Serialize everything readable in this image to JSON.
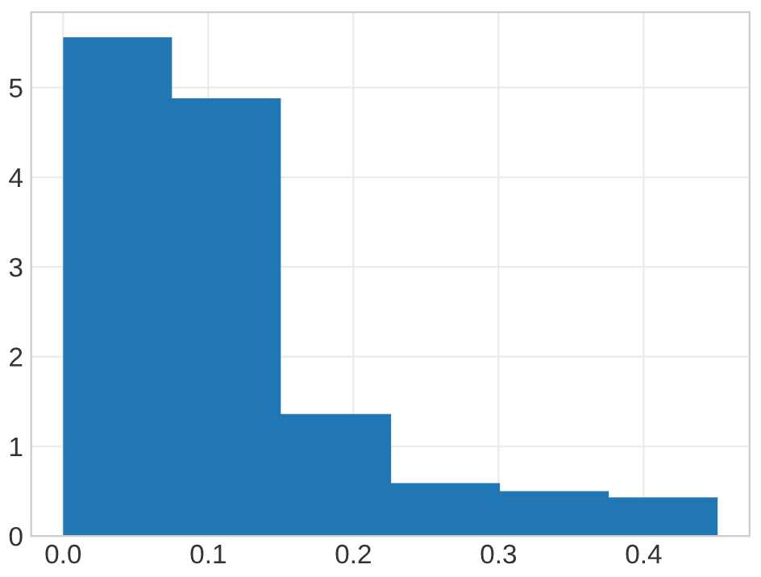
{
  "chart_data": {
    "type": "histogram",
    "bins": [
      0,
      0.075,
      0.15,
      0.226,
      0.301,
      0.376,
      0.451
    ],
    "values": [
      5.56,
      4.88,
      1.36,
      0.59,
      0.5,
      0.43
    ],
    "color": "#2077b4",
    "xlim": [
      -0.022,
      0.473
    ],
    "ylim": [
      0,
      5.84
    ],
    "xticks": [
      {
        "value": 0,
        "label": "0.0"
      },
      0.1,
      0.2,
      0.3,
      0.4
    ],
    "yticks": [
      0,
      1,
      2,
      3,
      4,
      5
    ],
    "grid": true
  }
}
